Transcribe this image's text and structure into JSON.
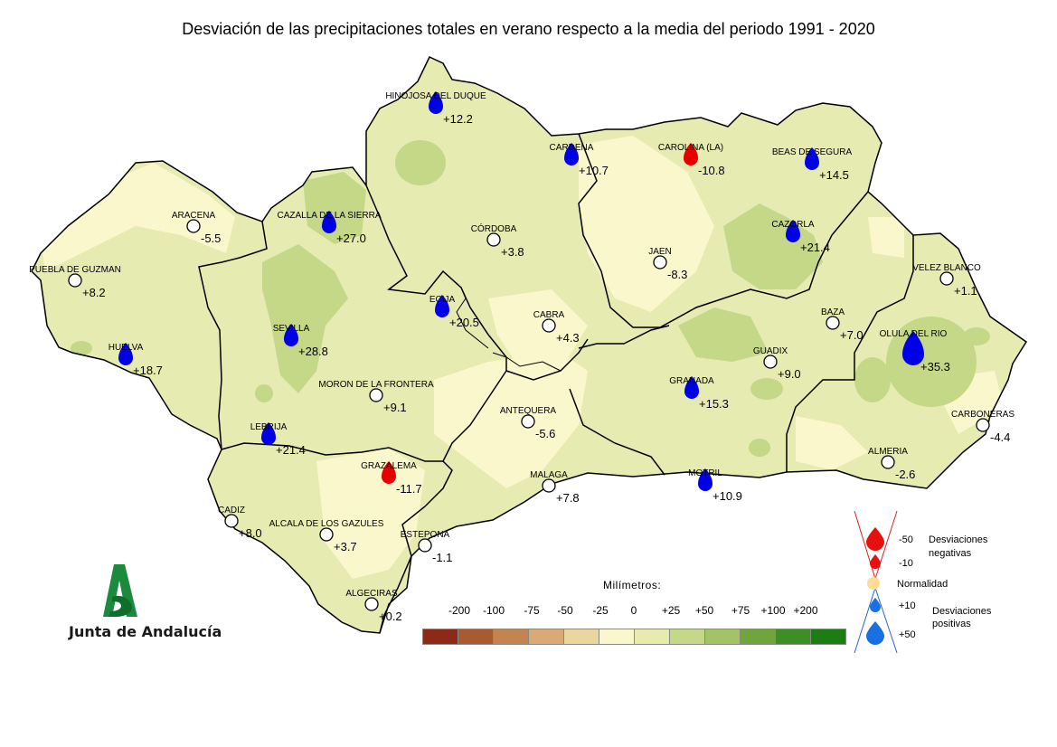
{
  "title": "Desviación de las precipitaciones totales en verano respecto a la media del periodo 1991 - 2020",
  "stations": [
    {
      "name": "HINOJOSA DEL DUQUE",
      "value": "+12.2",
      "type": "pos"
    },
    {
      "name": "CARDENA",
      "value": "+10.7",
      "type": "pos"
    },
    {
      "name": "CAROLINA (LA)",
      "value": "-10.8",
      "type": "neg"
    },
    {
      "name": "BEAS DE SEGURA",
      "value": "+14.5",
      "type": "pos"
    },
    {
      "name": "ARACENA",
      "value": "-5.5",
      "type": "norm"
    },
    {
      "name": "CAZALLA DE LA SIERRA",
      "value": "+27.0",
      "type": "pos"
    },
    {
      "name": "CÓRDOBA",
      "value": "+3.8",
      "type": "norm"
    },
    {
      "name": "CAZORLA",
      "value": "+21.4",
      "type": "pos"
    },
    {
      "name": "JAEN",
      "value": "-8.3",
      "type": "norm"
    },
    {
      "name": "PUEBLA DE GUZMAN",
      "value": "+8.2",
      "type": "norm"
    },
    {
      "name": "VELEZ BLANCO",
      "value": "+1.1",
      "type": "norm"
    },
    {
      "name": "ECIJA",
      "value": "+20.5",
      "type": "pos"
    },
    {
      "name": "CABRA",
      "value": "+4.3",
      "type": "norm"
    },
    {
      "name": "BAZA",
      "value": "+7.0",
      "type": "norm"
    },
    {
      "name": "SEVILLA",
      "value": "+28.8",
      "type": "pos"
    },
    {
      "name": "OLULA DEL RIO",
      "value": "+35.3",
      "type": "pos"
    },
    {
      "name": "HUELVA",
      "value": "+18.7",
      "type": "pos"
    },
    {
      "name": "GUADIX",
      "value": "+9.0",
      "type": "norm"
    },
    {
      "name": "MORON DE LA FRONTERA",
      "value": "+9.1",
      "type": "norm"
    },
    {
      "name": "GRANADA",
      "value": "+15.3",
      "type": "pos"
    },
    {
      "name": "ANTEQUERA",
      "value": "-5.6",
      "type": "norm"
    },
    {
      "name": "LEBRIJA",
      "value": "+21.4",
      "type": "pos"
    },
    {
      "name": "CARBONERAS",
      "value": "-4.4",
      "type": "norm"
    },
    {
      "name": "GRAZALEMA",
      "value": "-11.7",
      "type": "neg"
    },
    {
      "name": "ALMERIA",
      "value": "-2.6",
      "type": "norm"
    },
    {
      "name": "MALAGA",
      "value": "+7.8",
      "type": "norm"
    },
    {
      "name": "MOTRIL",
      "value": "+10.9",
      "type": "pos"
    },
    {
      "name": "CADIZ",
      "value": "+8.0",
      "type": "norm"
    },
    {
      "name": "ALCALA DE LOS GAZULES",
      "value": "+3.7",
      "type": "norm"
    },
    {
      "name": "ESTEPONA",
      "value": "-1.1",
      "type": "norm"
    },
    {
      "name": "ALGECIRAS",
      "value": "+0.2",
      "type": "norm"
    }
  ],
  "legend": {
    "title": "Milímetros:",
    "labels": [
      "-200",
      "-100",
      "-75",
      "-50",
      "-25",
      "0",
      "+25",
      "+50",
      "+75",
      "+100",
      "+200"
    ],
    "colors": [
      "#8c2a16",
      "#a85a32",
      "#c4844f",
      "#d9aa76",
      "#ead7a0",
      "#fbf7cc",
      "#e8ebb0",
      "#c4d888",
      "#a2c466",
      "#6fa53c",
      "#3e8e26",
      "#1b7d12"
    ]
  },
  "deviation_legend": {
    "neg_label": "Desviaciones negativas",
    "neg_values": [
      "-50",
      "-10"
    ],
    "normal_label": "Normalidad",
    "pos_values": [
      "+10",
      "+50"
    ],
    "pos_label": "Desviaciones positivas"
  },
  "colors": {
    "positive": "#0000e6",
    "negative": "#e60000",
    "normal": "#fddc94"
  },
  "logo": {
    "text": "Junta de Andalucía"
  }
}
